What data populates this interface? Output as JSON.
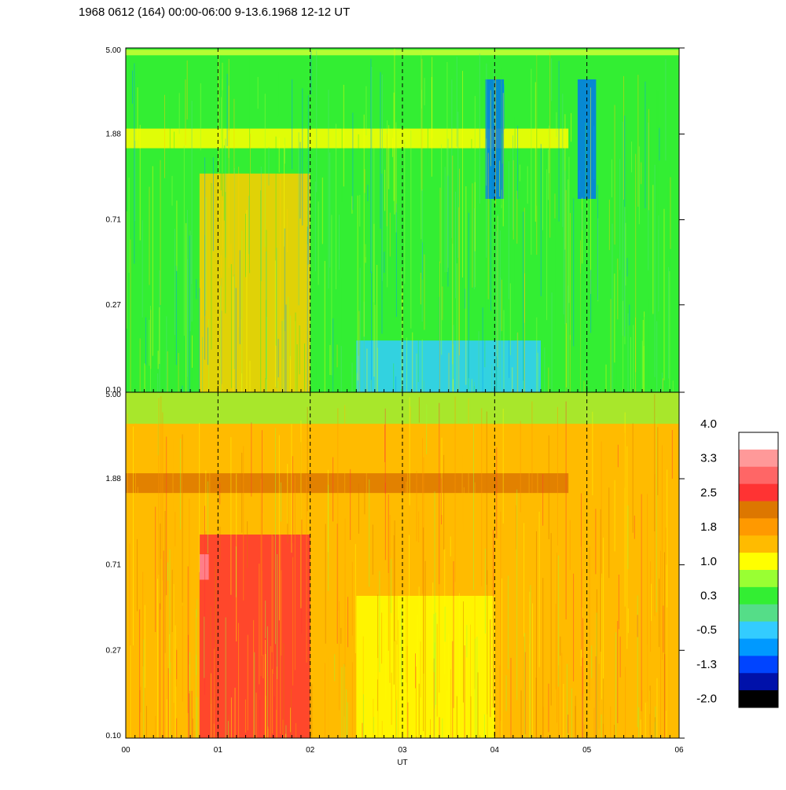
{
  "title": "1968 0612 (164) 00:00-06:00 9-13.6.1968  12-12 UT",
  "chart_data": [
    {
      "type": "heatmap",
      "panel": "upper",
      "x_ticks": [
        "00",
        "01",
        "02",
        "03",
        "04",
        "05",
        "06"
      ],
      "xlim": [
        0,
        6
      ],
      "y_ticks": [
        "5.00",
        "1.88",
        "0.71",
        "0.27",
        "0.10"
      ],
      "y_scale": "log",
      "ylim": [
        0.1,
        5.0
      ],
      "dashed_vertical_lines_at_x": [
        1,
        2,
        3,
        4,
        5
      ],
      "base_color": "#33ee33",
      "features": [
        {
          "x_range": [
            0.0,
            6.0
          ],
          "y_range": [
            4.6,
            4.9
          ],
          "color": "#ccff33"
        },
        {
          "x_range": [
            0.0,
            4.8
          ],
          "y_range": [
            1.6,
            2.0
          ],
          "color": "#ffff00"
        },
        {
          "x_range": [
            0.8,
            2.0
          ],
          "y_range": [
            0.1,
            1.2
          ],
          "color": "#ffcc00"
        },
        {
          "x_range": [
            3.9,
            4.1
          ],
          "y_range": [
            0.9,
            3.5
          ],
          "color": "#0077ee"
        },
        {
          "x_range": [
            4.9,
            5.1
          ],
          "y_range": [
            0.9,
            3.5
          ],
          "color": "#0077ee"
        },
        {
          "x_range": [
            2.5,
            4.5
          ],
          "y_range": [
            0.1,
            0.18
          ],
          "color": "#33ccff"
        }
      ]
    },
    {
      "type": "heatmap",
      "panel": "lower",
      "x_ticks": [
        "00",
        "01",
        "02",
        "03",
        "04",
        "05",
        "06"
      ],
      "xlim": [
        0,
        6
      ],
      "xlabel": "UT",
      "y_ticks": [
        "5.00",
        "1.88",
        "0.71",
        "0.27",
        "0.10"
      ],
      "y_scale": "log",
      "ylim": [
        0.1,
        5.0
      ],
      "dashed_vertical_lines_at_x": [
        1,
        2,
        3,
        4,
        5
      ],
      "base_color": "#ffbb00",
      "features": [
        {
          "x_range": [
            0.0,
            6.0
          ],
          "y_range": [
            3.5,
            5.0
          ],
          "color": "#99ee33"
        },
        {
          "x_range": [
            0.0,
            4.8
          ],
          "y_range": [
            1.6,
            2.0
          ],
          "color": "#dd7700"
        },
        {
          "x_range": [
            0.8,
            2.0
          ],
          "y_range": [
            0.1,
            1.0
          ],
          "color": "#ff3333"
        },
        {
          "x_range": [
            0.8,
            0.9
          ],
          "y_range": [
            0.6,
            0.8
          ],
          "color": "#ff8899"
        },
        {
          "x_range": [
            2.5,
            4.0
          ],
          "y_range": [
            0.1,
            0.5
          ],
          "color": "#ffff00"
        }
      ]
    }
  ],
  "colorbar": {
    "labels": [
      "4.0",
      "3.3",
      "2.5",
      "1.8",
      "1.0",
      "0.3",
      "-0.5",
      "-1.3",
      "-2.0"
    ],
    "colors": [
      "#ffffff",
      "#ff9999",
      "#ff6666",
      "#ff3333",
      "#dd7700",
      "#ff9900",
      "#ffbb00",
      "#ffff00",
      "#99ff33",
      "#33ee33",
      "#55dd88",
      "#33ccff",
      "#0099ff",
      "#0044ff",
      "#0011aa",
      "#000000"
    ]
  }
}
